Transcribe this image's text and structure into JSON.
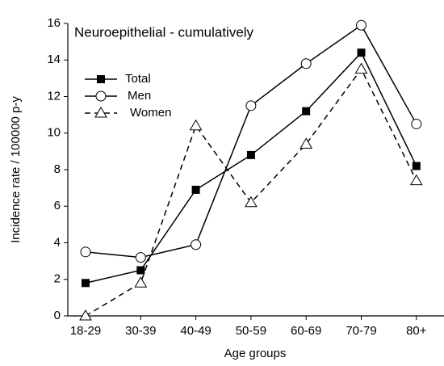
{
  "chart_data": {
    "type": "line",
    "title": "Neuroepithelial - cumulatively",
    "x_label": "Age groups",
    "y_label": "Incidence rate / 100000 p-y",
    "categories": [
      "18-29",
      "30-39",
      "40-49",
      "50-59",
      "60-69",
      "70-79",
      "80+"
    ],
    "series": [
      {
        "name": "Total",
        "color": "#000000",
        "marker": "square",
        "line_style": "solid",
        "values": [
          1.8,
          2.5,
          6.9,
          8.8,
          11.2,
          14.4,
          8.2
        ]
      },
      {
        "name": "Men",
        "color": "#000000",
        "marker": "circle",
        "line_style": "solid",
        "values": [
          3.5,
          3.2,
          3.9,
          11.5,
          13.8,
          15.9,
          10.5
        ]
      },
      {
        "name": "Women",
        "color": "#000000",
        "marker": "triangle",
        "line_style": "dashed",
        "values": [
          0,
          1.8,
          10.4,
          6.2,
          9.4,
          13.5,
          7.4
        ]
      }
    ],
    "ylim": [
      0,
      16
    ],
    "yticks": [
      0,
      2,
      4,
      6,
      8,
      10,
      12,
      14,
      16
    ],
    "grid": false
  }
}
